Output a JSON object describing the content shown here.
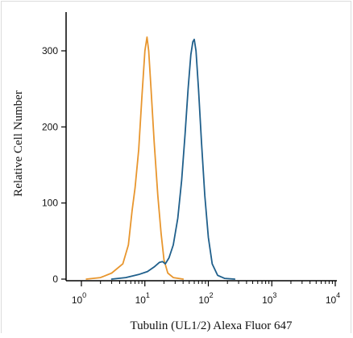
{
  "chart_data": {
    "type": "line",
    "xlabel": "Tubulin (UL1/2) Alexa Fluor 647",
    "ylabel": "Relative Cell Number",
    "x_scale": "log",
    "xlim": [
      1,
      10000
    ],
    "ylim": [
      0,
      330
    ],
    "x_ticks": [
      {
        "value": 1,
        "base": "10",
        "exponent": "0"
      },
      {
        "value": 10,
        "base": "10",
        "exponent": "1"
      },
      {
        "value": 100,
        "base": "10",
        "exponent": "2"
      },
      {
        "value": 1000,
        "base": "10",
        "exponent": "3"
      },
      {
        "value": 10000,
        "base": "10",
        "exponent": "4"
      }
    ],
    "y_ticks": [
      {
        "value": 0,
        "label": "0"
      },
      {
        "value": 100,
        "label": "100"
      },
      {
        "value": 200,
        "label": "200"
      },
      {
        "value": 300,
        "label": "300"
      }
    ],
    "grid": false,
    "legend": "none",
    "series": [
      {
        "color": "#e8962e",
        "points": [
          [
            1.2,
            0
          ],
          [
            2,
            2
          ],
          [
            3,
            8
          ],
          [
            4.5,
            20
          ],
          [
            5.5,
            45
          ],
          [
            6.3,
            90
          ],
          [
            7,
            120
          ],
          [
            8,
            170
          ],
          [
            9,
            240
          ],
          [
            10,
            300
          ],
          [
            10.8,
            318
          ],
          [
            11.5,
            300
          ],
          [
            12.5,
            250
          ],
          [
            14,
            180
          ],
          [
            16,
            110
          ],
          [
            18,
            60
          ],
          [
            20,
            25
          ],
          [
            23,
            8
          ],
          [
            28,
            2
          ],
          [
            40,
            0
          ]
        ]
      },
      {
        "color": "#1f5f8b",
        "points": [
          [
            3,
            0
          ],
          [
            5,
            2
          ],
          [
            8,
            6
          ],
          [
            11,
            10
          ],
          [
            14,
            16
          ],
          [
            17,
            22
          ],
          [
            19,
            23
          ],
          [
            21,
            20
          ],
          [
            24,
            28
          ],
          [
            28,
            45
          ],
          [
            33,
            80
          ],
          [
            38,
            130
          ],
          [
            43,
            190
          ],
          [
            48,
            250
          ],
          [
            53,
            295
          ],
          [
            57,
            312
          ],
          [
            60,
            315
          ],
          [
            64,
            300
          ],
          [
            70,
            250
          ],
          [
            78,
            180
          ],
          [
            88,
            110
          ],
          [
            100,
            55
          ],
          [
            115,
            20
          ],
          [
            140,
            5
          ],
          [
            180,
            1
          ],
          [
            260,
            0
          ]
        ]
      }
    ]
  }
}
